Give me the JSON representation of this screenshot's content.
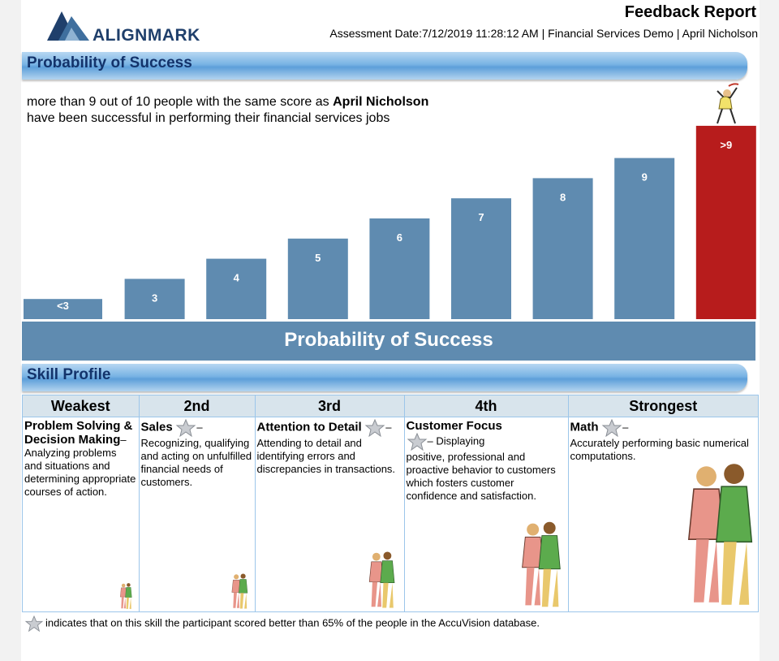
{
  "header": {
    "logo_text": "ALIGNMARK",
    "report_title": "Feedback Report",
    "assessment_meta": "Assessment Date:7/12/2019 11:28:12 AM | Financial Services Demo | April Nicholson"
  },
  "probability": {
    "section_title": "Probability of Success",
    "text_prefix": "more than 9 out of 10 people with the same score as ",
    "text_name": "April Nicholson",
    "text_suffix": " have been successful in performing their financial services jobs",
    "axis_banner": "Probability of Success"
  },
  "chart_data": {
    "type": "bar",
    "title": "Probability of Success",
    "categories": [
      "<3",
      "3",
      "4",
      "5",
      "6",
      "7",
      "8",
      "9",
      ">9"
    ],
    "values": [
      1,
      2,
      3,
      4,
      5,
      6,
      7,
      8,
      9.6
    ],
    "highlight_index": 8,
    "colors": {
      "bar": "#5f8bb0",
      "highlight": "#b71c1c",
      "label": "#ffffff"
    },
    "ylim": [
      0,
      10
    ],
    "grid": false,
    "legend": "none"
  },
  "skills": {
    "section_title": "Skill Profile",
    "columns": [
      {
        "rank": "Weakest",
        "title": "Problem Solving & Decision Making",
        "star": false,
        "description": "– Analyzing problems and situations and determining appropriate courses of action."
      },
      {
        "rank": "2nd",
        "title": "Sales",
        "star": true,
        "description": "Recognizing, qualifying and acting on unfulfilled financial needs of customers."
      },
      {
        "rank": "3rd",
        "title": "Attention to Detail",
        "star": true,
        "description": "Attending to detail and identifying errors and discrepancies in transactions."
      },
      {
        "rank": "4th",
        "title": "Customer Focus",
        "star": true,
        "description": "positive, professional and proactive behavior to customers which fosters customer confidence and satisfaction."
      },
      {
        "rank": "Strongest",
        "title": "Math",
        "star": true,
        "description": "Accurately performing basic numerical computations."
      }
    ],
    "customer_focus_lead": "– Displaying",
    "dash": "–",
    "footnote": "indicates that on this skill the participant scored better than 65% of the people in the AccuVision database."
  }
}
